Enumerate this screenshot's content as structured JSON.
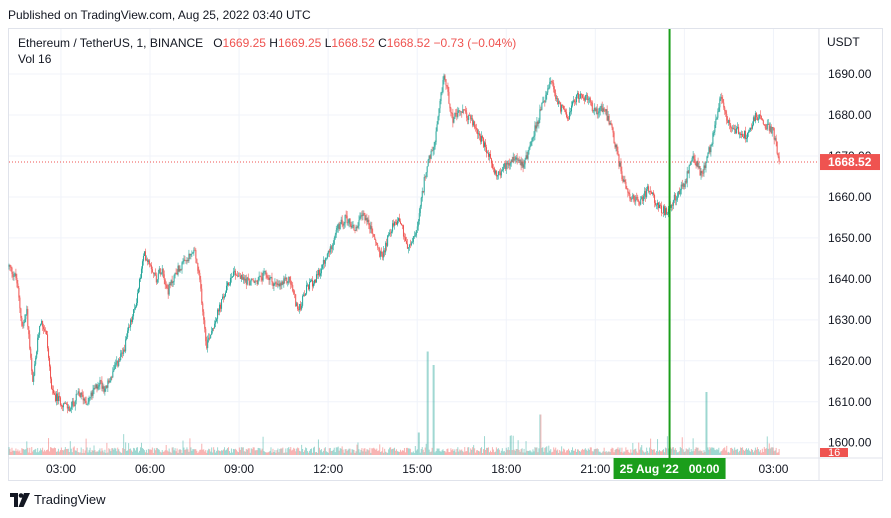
{
  "header": {
    "published": "Published on TradingView.com, Aug 25, 2022 03:40 UTC"
  },
  "legend": {
    "symbol": "Ethereum / TetherUS, 1, BINANCE",
    "o_label": "O",
    "o": "1669.25",
    "h_label": "H",
    "h": "1669.25",
    "l_label": "L",
    "l": "1668.52",
    "c_label": "C",
    "c": "1668.52",
    "change": "−0.73 (−0.04%)",
    "vol_label": "Vol",
    "vol": "16"
  },
  "axis": {
    "currency": "USDT"
  },
  "footer": {
    "brand": "TradingView"
  },
  "colors": {
    "up": "#26a69a",
    "down": "#ef5350",
    "crosshair": "#1b9e1b",
    "grid": "#f0f3fa"
  },
  "chart_data": {
    "type": "candlestick",
    "symbol": "ETHUSDT",
    "interval": "1 minute",
    "y_range": [
      1597,
      1701
    ],
    "y_ticks": [
      1600,
      1610,
      1620,
      1630,
      1640,
      1650,
      1660,
      1670,
      1680,
      1690
    ],
    "y_tick_labels": [
      "1600.00",
      "1610.00",
      "1620.00",
      "1630.00",
      "1640.00",
      "1650.00",
      "1660.00",
      "1670.00",
      "1680.00",
      "1690.00"
    ],
    "x_ticks": [
      "03:00",
      "06:00",
      "09:00",
      "12:00",
      "15:00",
      "18:00",
      "21:00",
      "00:00",
      "03:00"
    ],
    "x_tick_hours": [
      3,
      6,
      9,
      12,
      15,
      18,
      21,
      24,
      27
    ],
    "x_range_hours": [
      1.25,
      28.5
    ],
    "crosshair_hour": 23.5,
    "crosshair_label": "25 Aug '22   00:00",
    "last_price": 1668.52,
    "last_price_label": "1668.52",
    "volume_label": "16",
    "path_keys": [
      [
        1.25,
        1643
      ],
      [
        1.5,
        1640
      ],
      [
        1.7,
        1628
      ],
      [
        1.85,
        1632
      ],
      [
        2.05,
        1614
      ],
      [
        2.3,
        1630
      ],
      [
        2.5,
        1627
      ],
      [
        2.7,
        1612
      ],
      [
        3.0,
        1610
      ],
      [
        3.3,
        1608
      ],
      [
        3.6,
        1612
      ],
      [
        3.9,
        1610
      ],
      [
        4.3,
        1615
      ],
      [
        4.5,
        1613
      ],
      [
        4.8,
        1618
      ],
      [
        5.1,
        1622
      ],
      [
        5.3,
        1628
      ],
      [
        5.5,
        1633
      ],
      [
        5.8,
        1646
      ],
      [
        6.0,
        1644
      ],
      [
        6.2,
        1640
      ],
      [
        6.4,
        1643
      ],
      [
        6.6,
        1637
      ],
      [
        6.9,
        1642
      ],
      [
        7.2,
        1644
      ],
      [
        7.5,
        1647
      ],
      [
        7.7,
        1638
      ],
      [
        7.9,
        1624
      ],
      [
        8.2,
        1630
      ],
      [
        8.5,
        1636
      ],
      [
        8.8,
        1642
      ],
      [
        9.1,
        1640
      ],
      [
        9.5,
        1639
      ],
      [
        9.9,
        1641
      ],
      [
        10.3,
        1638
      ],
      [
        10.7,
        1640
      ],
      [
        11.0,
        1632
      ],
      [
        11.3,
        1638
      ],
      [
        11.6,
        1640
      ],
      [
        12.0,
        1646
      ],
      [
        12.3,
        1652
      ],
      [
        12.6,
        1655
      ],
      [
        12.9,
        1652
      ],
      [
        13.2,
        1656
      ],
      [
        13.5,
        1651
      ],
      [
        13.8,
        1645
      ],
      [
        14.1,
        1652
      ],
      [
        14.4,
        1655
      ],
      [
        14.7,
        1647
      ],
      [
        15.0,
        1652
      ],
      [
        15.3,
        1667
      ],
      [
        15.6,
        1673
      ],
      [
        15.9,
        1690
      ],
      [
        16.2,
        1679
      ],
      [
        16.5,
        1681
      ],
      [
        16.8,
        1679
      ],
      [
        17.1,
        1675
      ],
      [
        17.4,
        1670
      ],
      [
        17.7,
        1665
      ],
      [
        18.0,
        1668
      ],
      [
        18.3,
        1670
      ],
      [
        18.6,
        1668
      ],
      [
        18.9,
        1675
      ],
      [
        19.2,
        1682
      ],
      [
        19.5,
        1688
      ],
      [
        19.8,
        1682
      ],
      [
        20.1,
        1680
      ],
      [
        20.4,
        1685
      ],
      [
        20.7,
        1684
      ],
      [
        21.0,
        1681
      ],
      [
        21.3,
        1682
      ],
      [
        21.6,
        1675
      ],
      [
        21.9,
        1665
      ],
      [
        22.2,
        1660
      ],
      [
        22.5,
        1659
      ],
      [
        22.8,
        1662
      ],
      [
        23.1,
        1658
      ],
      [
        23.4,
        1656
      ],
      [
        23.7,
        1660
      ],
      [
        24.0,
        1663
      ],
      [
        24.3,
        1670
      ],
      [
        24.6,
        1665
      ],
      [
        24.9,
        1673
      ],
      [
        25.2,
        1684
      ],
      [
        25.5,
        1678
      ],
      [
        25.8,
        1676
      ],
      [
        26.1,
        1675
      ],
      [
        26.4,
        1680
      ],
      [
        26.7,
        1678
      ],
      [
        27.0,
        1676
      ],
      [
        27.2,
        1668
      ]
    ],
    "volume_spikes": [
      [
        15.05,
        5
      ],
      [
        15.35,
        23
      ],
      [
        15.55,
        20
      ],
      [
        19.15,
        9
      ],
      [
        24.75,
        14
      ]
    ]
  }
}
